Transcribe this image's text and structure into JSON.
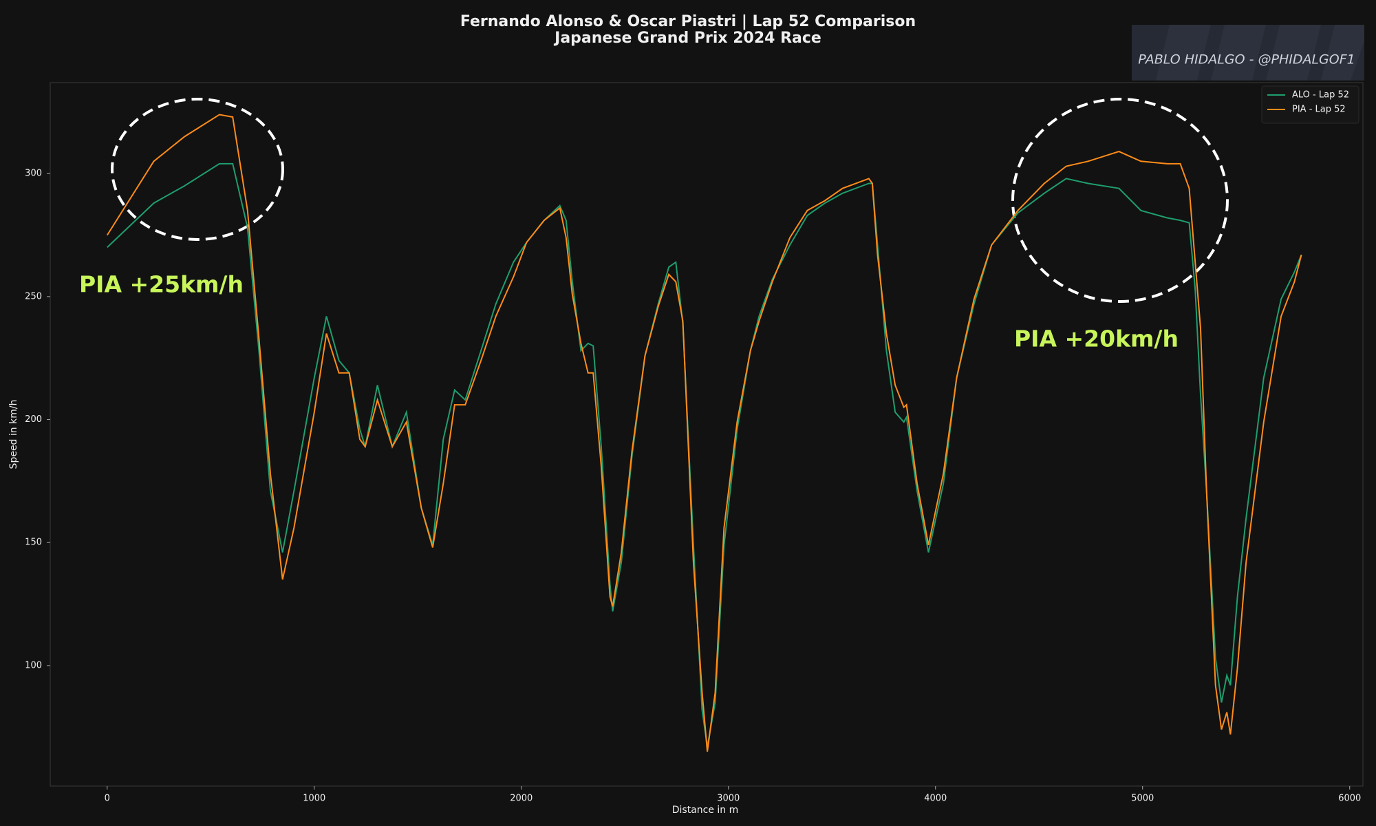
{
  "chart_data": {
    "type": "line",
    "title": "Fernando Alonso & Oscar Piastri | Lap 52 Comparison",
    "subtitle": "Japanese Grand Prix 2024 Race",
    "x_label": "Distance in m",
    "y_label": "Speed in km/h",
    "watermark": "PABLO HIDALGO - @PHIDALGOF1",
    "annotations": [
      "PIA +25km/h",
      "PIA +20km/h"
    ],
    "annotation_color": "#c8f55a",
    "legend": "upper right",
    "xlim": [
      -275,
      6064
    ],
    "ylim": [
      51,
      337
    ],
    "xticks": [
      0,
      1000,
      2000,
      3000,
      4000,
      5000,
      6000
    ],
    "yticks": [
      100,
      150,
      200,
      250,
      300
    ],
    "x": [
      0,
      225,
      373,
      542,
      606,
      678,
      733,
      788,
      847,
      902,
      1000,
      1059,
      1119,
      1169,
      1220,
      1246,
      1305,
      1377,
      1445,
      1517,
      1572,
      1623,
      1678,
      1729,
      1805,
      1877,
      1962,
      2025,
      2110,
      2186,
      2216,
      2246,
      2288,
      2322,
      2347,
      2386,
      2428,
      2441,
      2483,
      2534,
      2597,
      2661,
      2712,
      2746,
      2780,
      2831,
      2873,
      2898,
      2936,
      2979,
      3042,
      3106,
      3148,
      3212,
      3297,
      3381,
      3466,
      3551,
      3678,
      3695,
      3720,
      3763,
      3805,
      3847,
      3860,
      3911,
      3966,
      4038,
      4102,
      4186,
      4271,
      4398,
      4525,
      4631,
      4737,
      4886,
      4992,
      5119,
      5182,
      5225,
      5254,
      5280,
      5309,
      5352,
      5381,
      5407,
      5424,
      5458,
      5500,
      5585,
      5669,
      5733,
      5767
    ],
    "series": [
      {
        "name": "ALO - Lap 52",
        "color": "#1f9e6e",
        "values": [
          270,
          288,
          295,
          304,
          304,
          278,
          228,
          171,
          146,
          171,
          217,
          242,
          224,
          219,
          196,
          189,
          214,
          189,
          203,
          164,
          149,
          192,
          212,
          208,
          228,
          247,
          264,
          272,
          281,
          287,
          281,
          256,
          228,
          231,
          230,
          189,
          133,
          122,
          142,
          185,
          226,
          247,
          262,
          264,
          239,
          149,
          82,
          67,
          85,
          149,
          196,
          228,
          242,
          257,
          271,
          283,
          288,
          292,
          296,
          296,
          271,
          228,
          203,
          199,
          201,
          171,
          146,
          174,
          217,
          247,
          271,
          284,
          292,
          298,
          296,
          294,
          285,
          282,
          281,
          280,
          253,
          210,
          171,
          103,
          85,
          96,
          92,
          128,
          160,
          217,
          249,
          260,
          267
        ]
      },
      {
        "name": "PIA - Lap 52",
        "color": "#ff8c1a",
        "values": [
          275,
          305,
          315,
          324,
          323,
          285,
          233,
          178,
          135,
          156,
          203,
          235,
          219,
          219,
          192,
          189,
          208,
          189,
          199,
          164,
          148,
          174,
          206,
          206,
          224,
          242,
          258,
          272,
          281,
          286,
          274,
          251,
          231,
          219,
          219,
          181,
          128,
          124,
          146,
          187,
          226,
          246,
          259,
          256,
          240,
          142,
          89,
          65,
          89,
          156,
          199,
          228,
          240,
          256,
          274,
          285,
          289,
          294,
          298,
          296,
          267,
          235,
          214,
          205,
          206,
          174,
          149,
          178,
          217,
          249,
          271,
          285,
          296,
          303,
          305,
          309,
          305,
          304,
          304,
          294,
          264,
          237,
          171,
          92,
          74,
          81,
          72,
          99,
          142,
          199,
          242,
          256,
          267
        ]
      }
    ]
  }
}
